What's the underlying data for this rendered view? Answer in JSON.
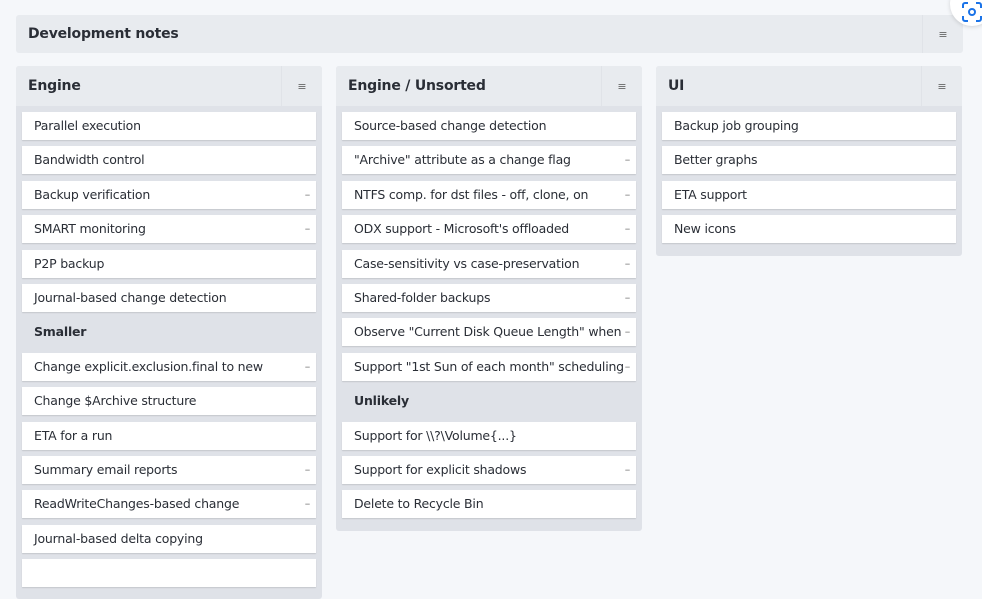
{
  "board": {
    "title": "Development notes",
    "menu_icon": "hamburger-icon"
  },
  "columns": [
    {
      "title": "Engine",
      "items": [
        {
          "type": "card",
          "text": "Parallel execution",
          "dash": false
        },
        {
          "type": "card",
          "text": "Bandwidth control",
          "dash": false
        },
        {
          "type": "card",
          "text": "Backup verification",
          "dash": true
        },
        {
          "type": "card",
          "text": "SMART monitoring",
          "dash": true
        },
        {
          "type": "card",
          "text": "P2P backup",
          "dash": false
        },
        {
          "type": "card",
          "text": "Journal-based change detection",
          "dash": false
        },
        {
          "type": "section",
          "text": "Smaller"
        },
        {
          "type": "card",
          "text": "Change explicit.exclusion.final to new",
          "dash": true
        },
        {
          "type": "card",
          "text": "Change $Archive structure",
          "dash": false
        },
        {
          "type": "card",
          "text": "ETA for a run",
          "dash": false
        },
        {
          "type": "card",
          "text": "Summary email reports",
          "dash": true
        },
        {
          "type": "card",
          "text": "ReadWriteChanges-based change",
          "dash": true
        },
        {
          "type": "card",
          "text": "Journal-based delta copying",
          "dash": false
        },
        {
          "type": "card",
          "text": "",
          "dash": false
        }
      ]
    },
    {
      "title": "Engine / Unsorted",
      "items": [
        {
          "type": "card",
          "text": "Source-based change detection",
          "dash": false
        },
        {
          "type": "card",
          "text": "\"Archive\" attribute as a change flag",
          "dash": true
        },
        {
          "type": "card",
          "text": "NTFS comp. for dst files - off, clone, on",
          "dash": true
        },
        {
          "type": "card",
          "text": "ODX support - Microsoft's offloaded",
          "dash": true
        },
        {
          "type": "card",
          "text": "Case-sensitivity vs case-preservation",
          "dash": true
        },
        {
          "type": "card",
          "text": "Shared-folder backups",
          "dash": true
        },
        {
          "type": "card",
          "text": "Observe \"Current Disk Queue Length\" when",
          "dash": true
        },
        {
          "type": "card",
          "text": "Support \"1st Sun of each month\" scheduling",
          "dash": true
        },
        {
          "type": "section",
          "text": "Unlikely"
        },
        {
          "type": "card",
          "text": "Support for \\\\?\\Volume{...}",
          "dash": false
        },
        {
          "type": "card",
          "text": "Support for explicit shadows",
          "dash": true
        },
        {
          "type": "card",
          "text": "Delete to Recycle Bin",
          "dash": false
        }
      ]
    },
    {
      "title": "UI",
      "items": [
        {
          "type": "card",
          "text": "Backup job grouping",
          "dash": false
        },
        {
          "type": "card",
          "text": "Better graphs",
          "dash": false
        },
        {
          "type": "card",
          "text": "ETA support",
          "dash": false
        },
        {
          "type": "card",
          "text": "New icons",
          "dash": false
        }
      ]
    }
  ],
  "dash_glyph": "–",
  "menu_glyph": "≡",
  "colors": {
    "accent": "#1a73e8",
    "column_bg": "#dfe2e8",
    "header_bg": "#e8ebef"
  }
}
